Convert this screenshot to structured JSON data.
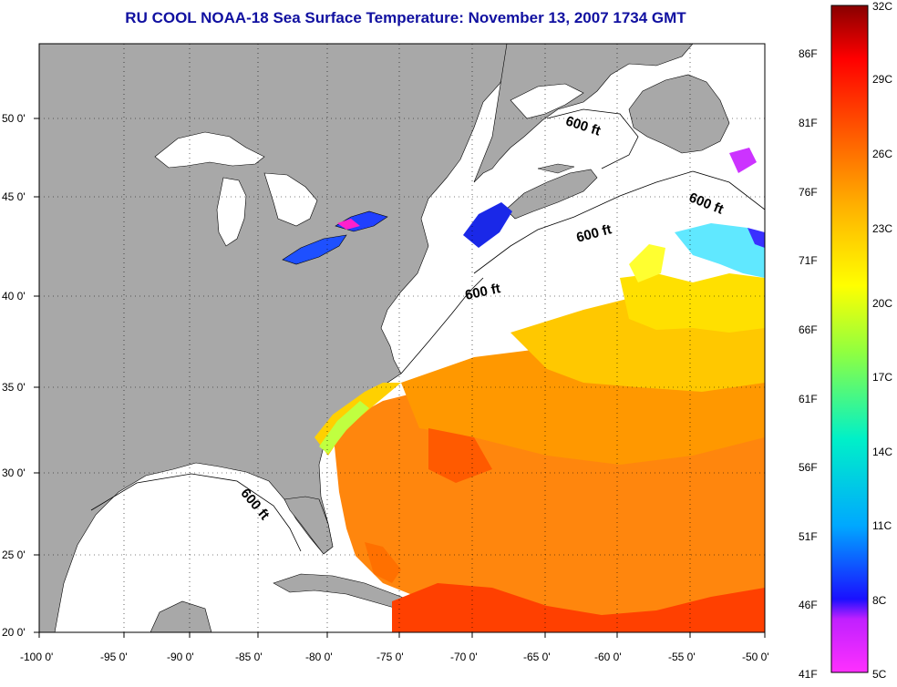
{
  "title": "RU COOL  NOAA-18  Sea Surface Temperature:  November 13, 2007 1734 GMT",
  "map": {
    "lon_ticks": [
      "-100 0'",
      "-95 0'",
      "-90 0'",
      "-85 0'",
      "-80 0'",
      "-75 0'",
      "-70 0'",
      "-65 0'",
      "-60 0'",
      "-55 0'",
      "-50 0'"
    ],
    "lat_ticks": [
      "50 0'",
      "45 0'",
      "40 0'",
      "35 0'",
      "30 0'",
      "25 0'",
      "20 0'"
    ],
    "contour_labels": [
      "600 ft",
      "600 ft",
      "600 ft",
      "600 ft",
      "600 ft"
    ],
    "colors": {
      "land": "#a8a8a8",
      "ocean_no_data": "#ffffff",
      "title": "#1010a0"
    }
  },
  "colorbar": {
    "fahrenheit_labels": [
      "86F",
      "81F",
      "76F",
      "71F",
      "66F",
      "61F",
      "56F",
      "51F",
      "46F",
      "41F"
    ],
    "celsius_labels": [
      "32C",
      "29C",
      "26C",
      "23C",
      "20C",
      "17C",
      "14C",
      "11C",
      "8C",
      "5C"
    ],
    "range_c": [
      5,
      32
    ]
  }
}
